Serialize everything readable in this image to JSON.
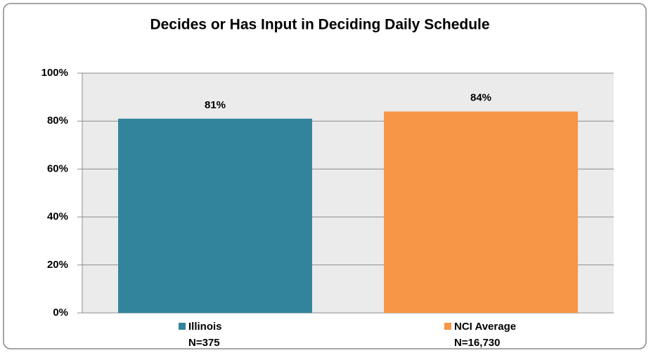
{
  "chart_data": {
    "type": "bar",
    "title": "Decides or Has Input in Deciding Daily Schedule",
    "categories": [
      "Illinois",
      "NCI Average"
    ],
    "sample_sizes": [
      "N=375",
      "N=16,730"
    ],
    "values": [
      81,
      84
    ],
    "value_labels": [
      "81%",
      "84%"
    ],
    "colors": [
      "#31849b",
      "#f79646"
    ],
    "ylim": [
      0,
      100
    ],
    "yticks": [
      {
        "value": 0,
        "label": "0%"
      },
      {
        "value": 20,
        "label": "20%"
      },
      {
        "value": 40,
        "label": "40%"
      },
      {
        "value": 60,
        "label": "60%"
      },
      {
        "value": 80,
        "label": "80%"
      },
      {
        "value": 100,
        "label": "100%"
      }
    ],
    "grid": true
  }
}
